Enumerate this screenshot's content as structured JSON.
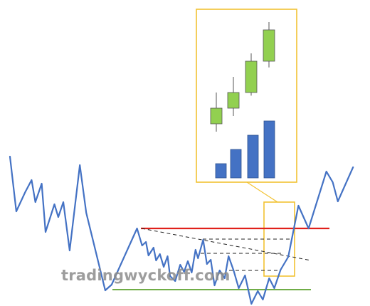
{
  "chart_data": {
    "type": "line",
    "title": "",
    "xlabel": "",
    "ylabel": "",
    "grid": false,
    "legend": "none",
    "price_path": [
      [
        0,
        220
      ],
      [
        5,
        297
      ],
      [
        12,
        270
      ],
      [
        17,
        253
      ],
      [
        20,
        284
      ],
      [
        25,
        258
      ],
      [
        28,
        326
      ],
      [
        35,
        287
      ],
      [
        38,
        305
      ],
      [
        42,
        284
      ],
      [
        47,
        352
      ],
      [
        55,
        232
      ],
      [
        60,
        299
      ],
      [
        75,
        408
      ],
      [
        80,
        400
      ],
      [
        100,
        321
      ],
      [
        104,
        345
      ],
      [
        107,
        340
      ],
      [
        109,
        359
      ],
      [
        113,
        348
      ],
      [
        115,
        366
      ],
      [
        118,
        357
      ],
      [
        121,
        375
      ],
      [
        124,
        360
      ],
      [
        126,
        388
      ],
      [
        130,
        395
      ],
      [
        134,
        372
      ],
      [
        137,
        382
      ],
      [
        140,
        367
      ],
      [
        143,
        383
      ],
      [
        146,
        351
      ],
      [
        148,
        363
      ],
      [
        152,
        337
      ],
      [
        155,
        371
      ],
      [
        158,
        365
      ],
      [
        161,
        401
      ],
      [
        165,
        380
      ],
      [
        169,
        391
      ],
      [
        172,
        360
      ],
      [
        176,
        380
      ],
      [
        180,
        405
      ],
      [
        185,
        387
      ],
      [
        190,
        427
      ],
      [
        195,
        409
      ],
      [
        199,
        421
      ],
      [
        204,
        391
      ],
      [
        208,
        405
      ],
      [
        213,
        379
      ],
      [
        219,
        361
      ],
      [
        227,
        289
      ],
      [
        235,
        321
      ],
      [
        249,
        241
      ],
      [
        254,
        256
      ],
      [
        258,
        283
      ],
      [
        270,
        235
      ]
    ],
    "resistance_level": 321,
    "support_level": 407,
    "volume_bars": [
      1,
      2,
      3,
      4
    ],
    "candles": [
      {
        "open": 1,
        "close": 2,
        "high": 3,
        "low": 0.5
      },
      {
        "open": 2,
        "close": 3,
        "high": 4,
        "low": 1.5
      },
      {
        "open": 3,
        "close": 5,
        "high": 5.5,
        "low": 2.8
      },
      {
        "open": 5,
        "close": 7,
        "high": 7.5,
        "low": 4.6
      }
    ],
    "colors": {
      "price": "#4472c4",
      "resistance": "#e0201b",
      "support": "#70ad47",
      "callout": "#f2c232",
      "candle": "#92d050",
      "volume": "#4472c4",
      "dashed": "#222222"
    }
  },
  "watermark": "tradingwyckoff.com"
}
